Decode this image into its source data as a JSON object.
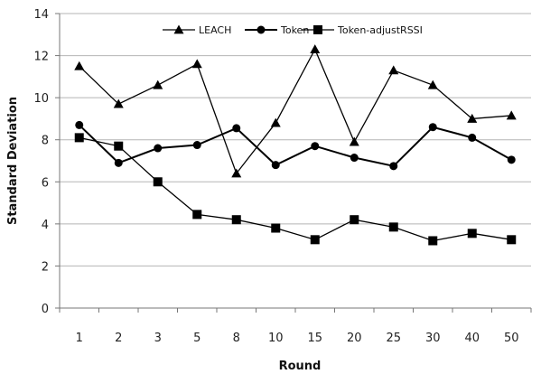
{
  "chart_data": {
    "type": "line",
    "categories": [
      "1",
      "2",
      "3",
      "5",
      "8",
      "10",
      "15",
      "20",
      "25",
      "30",
      "40",
      "50"
    ],
    "series": [
      {
        "name": "LEACH",
        "marker": "triangle",
        "values": [
          11.5,
          9.7,
          10.6,
          11.6,
          6.4,
          8.8,
          12.3,
          7.9,
          11.3,
          10.6,
          9.0,
          9.15
        ]
      },
      {
        "name": "Token",
        "marker": "circle",
        "values": [
          8.7,
          6.9,
          7.6,
          7.75,
          8.55,
          6.8,
          7.7,
          7.15,
          6.75,
          8.6,
          8.1,
          7.05
        ]
      },
      {
        "name": "Token-adjustRSSI",
        "marker": "square",
        "values": [
          8.1,
          7.7,
          6.0,
          4.45,
          4.2,
          3.8,
          3.25,
          4.2,
          3.85,
          3.2,
          3.55,
          3.25
        ]
      }
    ],
    "xlabel": "Round",
    "ylabel": "Standard  Deviation",
    "ylim": [
      0,
      14
    ],
    "yticks": [
      0,
      2,
      4,
      6,
      8,
      10,
      12,
      14
    ],
    "grid": true,
    "legend": "top-center",
    "line_color": "#000000",
    "grid_color": "#b5b5b5"
  }
}
